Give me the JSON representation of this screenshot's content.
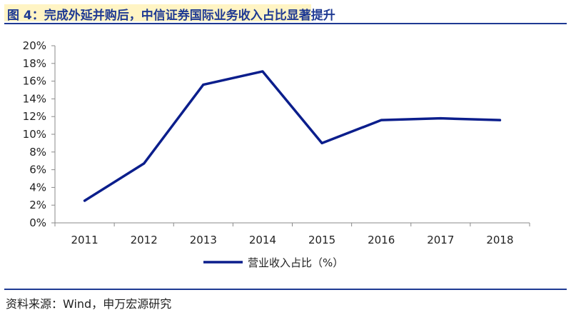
{
  "header": {
    "title": "图 4：完成外延并购后，中信证券国际业务收入占比显著提升"
  },
  "footer": {
    "source": "资料来源：Wind，申万宏源研究"
  },
  "colors": {
    "series": "#0b1e8c",
    "title": "#1f3a93",
    "title_highlight": "#fff4c4"
  },
  "chart_data": {
    "type": "line",
    "title": "",
    "xlabel": "",
    "ylabel": "",
    "categories": [
      "2011",
      "2012",
      "2013",
      "2014",
      "2015",
      "2016",
      "2017",
      "2018"
    ],
    "series": [
      {
        "name": "营业收入占比（%）",
        "values": [
          2.5,
          6.7,
          15.6,
          17.1,
          9.0,
          11.6,
          11.8,
          11.6
        ]
      }
    ],
    "ylim": [
      0,
      20
    ],
    "yticks": [
      "0%",
      "2%",
      "4%",
      "6%",
      "8%",
      "10%",
      "12%",
      "14%",
      "16%",
      "18%",
      "20%"
    ],
    "grid": false,
    "legend_position": "bottom-center"
  }
}
